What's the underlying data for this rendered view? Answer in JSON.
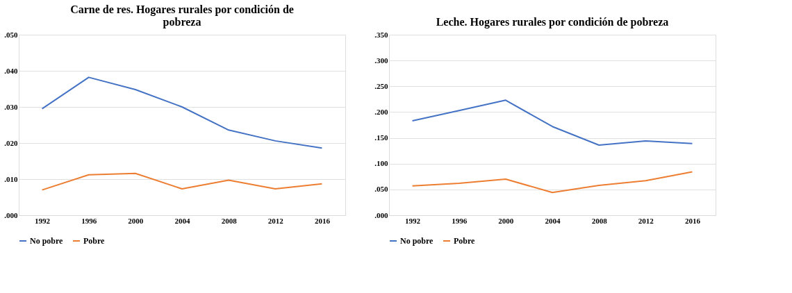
{
  "chart_data": [
    {
      "type": "line",
      "title": "Carne de res. Hogares rurales por condición de pobreza",
      "categories": [
        "1992",
        "1996",
        "2000",
        "2004",
        "2008",
        "2012",
        "2016"
      ],
      "series": [
        {
          "name": "No pobre",
          "color": "#4472c4",
          "values": [
            0.0295,
            0.0382,
            0.0348,
            0.03,
            0.0236,
            0.0206,
            0.0186
          ]
        },
        {
          "name": "Pobre",
          "color": "#ed7d31",
          "values": [
            0.007,
            0.0112,
            0.0116,
            0.0073,
            0.0097,
            0.0073,
            0.0087
          ]
        }
      ],
      "ylim": [
        0,
        0.05
      ],
      "yticks": [
        {
          "value": 0,
          "label": ".000"
        },
        {
          "value": 0.01,
          "label": ".010"
        },
        {
          "value": 0.02,
          "label": ".020"
        },
        {
          "value": 0.03,
          "label": ".030"
        },
        {
          "value": 0.04,
          "label": ".040"
        },
        {
          "value": 0.05,
          "label": ".050"
        }
      ],
      "grid": "y",
      "legend": "bottom",
      "marker": "none",
      "line_style": "solid"
    },
    {
      "type": "line",
      "title": "Leche. Hogares rurales por condición de pobreza",
      "categories": [
        "1992",
        "1996",
        "2000",
        "2004",
        "2008",
        "2012",
        "2016"
      ],
      "series": [
        {
          "name": "No pobre",
          "color": "#4472c4",
          "values": [
            0.183,
            0.203,
            0.223,
            0.172,
            0.136,
            0.144,
            0.139
          ]
        },
        {
          "name": "Pobre",
          "color": "#ed7d31",
          "values": [
            0.057,
            0.062,
            0.07,
            0.044,
            0.058,
            0.067,
            0.084
          ]
        }
      ],
      "ylim": [
        0,
        0.35
      ],
      "yticks": [
        {
          "value": 0,
          "label": ".000"
        },
        {
          "value": 0.05,
          "label": ".050"
        },
        {
          "value": 0.1,
          "label": ".100"
        },
        {
          "value": 0.15,
          "label": ".150"
        },
        {
          "value": 0.2,
          "label": ".200"
        },
        {
          "value": 0.25,
          "label": ".250"
        },
        {
          "value": 0.3,
          "label": ".300"
        },
        {
          "value": 0.35,
          "label": ".350"
        }
      ],
      "grid": "y",
      "legend": "bottom",
      "marker": "none",
      "line_style": "solid"
    }
  ]
}
